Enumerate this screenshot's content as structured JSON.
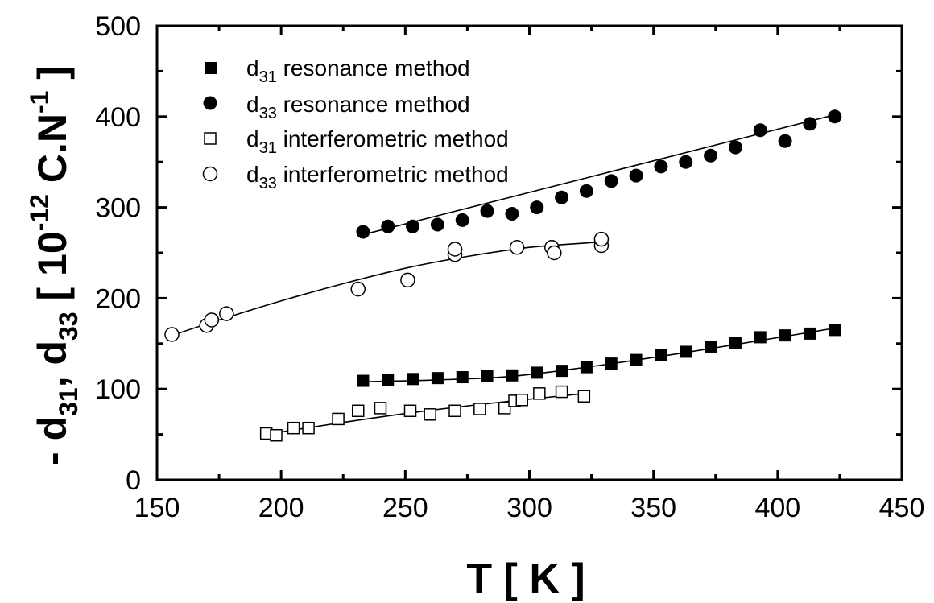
{
  "chart_data": {
    "type": "scatter",
    "xlabel": "T [ K ]",
    "ylabel": {
      "prefix": "- d",
      "sub1": "31",
      "sep": ", d",
      "sub2": "33",
      "bracket_open": " [ 10",
      "sup": "-12",
      "unit": " C.N",
      "unit_sup": "-1",
      "bracket_close": " ]"
    },
    "xlim": [
      150,
      450
    ],
    "ylim": [
      0,
      500
    ],
    "xticks": [
      150,
      200,
      250,
      300,
      350,
      400,
      450
    ],
    "yticks": [
      0,
      100,
      200,
      300,
      400,
      500
    ],
    "grid": false,
    "legend_position": "top-left",
    "series": [
      {
        "legend_prefix": "d",
        "legend_sub": "31",
        "legend_suffix": " resonance method",
        "marker": "square-filled",
        "points": [
          [
            233,
            109
          ],
          [
            243,
            110
          ],
          [
            253,
            111
          ],
          [
            263,
            112
          ],
          [
            273,
            113
          ],
          [
            283,
            114
          ],
          [
            293,
            115
          ],
          [
            303,
            118
          ],
          [
            313,
            120
          ],
          [
            323,
            124
          ],
          [
            333,
            128
          ],
          [
            343,
            132
          ],
          [
            353,
            137
          ],
          [
            363,
            141
          ],
          [
            373,
            146
          ],
          [
            383,
            151
          ],
          [
            393,
            157
          ],
          [
            403,
            159
          ],
          [
            413,
            161
          ],
          [
            423,
            165
          ]
        ],
        "fit": [
          [
            233,
            108
          ],
          [
            263,
            110
          ],
          [
            293,
            114
          ],
          [
            323,
            124
          ],
          [
            353,
            136
          ],
          [
            383,
            149
          ],
          [
            423,
            167
          ]
        ]
      },
      {
        "legend_prefix": "d",
        "legend_sub": "33",
        "legend_suffix": " resonance method",
        "marker": "circle-filled",
        "points": [
          [
            233,
            273
          ],
          [
            243,
            279
          ],
          [
            253,
            279
          ],
          [
            263,
            281
          ],
          [
            273,
            286
          ],
          [
            283,
            296
          ],
          [
            293,
            293
          ],
          [
            303,
            300
          ],
          [
            313,
            311
          ],
          [
            323,
            318
          ],
          [
            333,
            329
          ],
          [
            343,
            335
          ],
          [
            353,
            345
          ],
          [
            363,
            350
          ],
          [
            373,
            357
          ],
          [
            383,
            366
          ],
          [
            393,
            385
          ],
          [
            403,
            373
          ],
          [
            413,
            392
          ],
          [
            423,
            400
          ]
        ],
        "fit": [
          [
            233,
            270
          ],
          [
            423,
            402
          ]
        ]
      },
      {
        "legend_prefix": "d",
        "legend_sub": "31",
        "legend_suffix": " interferometric method",
        "marker": "square-open",
        "points": [
          [
            194,
            51
          ],
          [
            198,
            49
          ],
          [
            205,
            57
          ],
          [
            211,
            57
          ],
          [
            223,
            67
          ],
          [
            231,
            76
          ],
          [
            240,
            79
          ],
          [
            252,
            76
          ],
          [
            260,
            72
          ],
          [
            270,
            76
          ],
          [
            280,
            78
          ],
          [
            290,
            79
          ],
          [
            294,
            87
          ],
          [
            297,
            88
          ],
          [
            304,
            95
          ],
          [
            313,
            97
          ],
          [
            322,
            92
          ]
        ],
        "fit": [
          [
            194,
            50
          ],
          [
            222,
            62
          ],
          [
            250,
            73
          ],
          [
            280,
            83
          ],
          [
            322,
            95
          ]
        ]
      },
      {
        "legend_prefix": "d",
        "legend_sub": "33",
        "legend_suffix": " interferometric method",
        "marker": "circle-open",
        "points": [
          [
            156,
            160
          ],
          [
            170,
            170
          ],
          [
            172,
            176
          ],
          [
            178,
            183
          ],
          [
            231,
            210
          ],
          [
            251,
            220
          ],
          [
            270,
            248
          ],
          [
            270,
            254
          ],
          [
            295,
            256
          ],
          [
            309,
            256
          ],
          [
            310,
            250
          ],
          [
            329,
            258
          ],
          [
            329,
            265
          ]
        ],
        "fit": [
          [
            156,
            159
          ],
          [
            175,
            176
          ],
          [
            200,
            197
          ],
          [
            225,
            216
          ],
          [
            250,
            233
          ],
          [
            275,
            246
          ],
          [
            300,
            256
          ],
          [
            329,
            262
          ]
        ]
      }
    ]
  }
}
